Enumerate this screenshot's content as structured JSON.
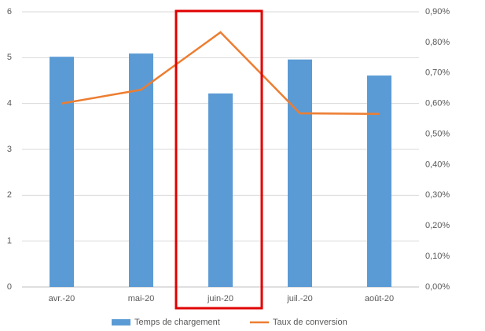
{
  "chart_data": {
    "type": "combo",
    "categories": [
      "avr.-20",
      "mai-20",
      "juin-20",
      "juil.-20",
      "août-20"
    ],
    "series": [
      {
        "name": "Temps de chargement",
        "type": "bar",
        "color": "#5b9bd5",
        "values": [
          5.02,
          5.09,
          4.22,
          4.96,
          4.61
        ]
      },
      {
        "name": "Taux de conversion",
        "type": "line",
        "axis": "y2",
        "color": "#ed7d31",
        "values": [
          0.6,
          0.645,
          0.833,
          0.568,
          0.566
        ]
      }
    ],
    "ylim": [
      0,
      6
    ],
    "yticks": [
      0,
      1,
      2,
      3,
      4,
      5,
      6
    ],
    "y2lim": [
      0,
      0.9
    ],
    "y2ticks": [
      {
        "value": 0,
        "label": "0,00%"
      },
      {
        "value": 0.1,
        "label": "0,10%"
      },
      {
        "value": 0.2,
        "label": "0,20%"
      },
      {
        "value": 0.3,
        "label": "0,30%"
      },
      {
        "value": 0.4,
        "label": "0,40%"
      },
      {
        "value": 0.5,
        "label": "0,50%"
      },
      {
        "value": 0.6,
        "label": "0,60%"
      },
      {
        "value": 0.7,
        "label": "0,70%"
      },
      {
        "value": 0.8,
        "label": "0,80%"
      },
      {
        "value": 0.9,
        "label": "0,90%"
      }
    ],
    "grid": true,
    "legend": "bottom"
  }
}
